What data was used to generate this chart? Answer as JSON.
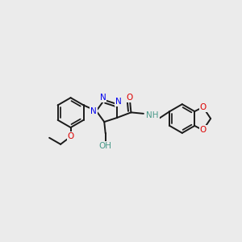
{
  "background_color": "#ebebeb",
  "figsize": [
    3.0,
    3.0
  ],
  "dpi": 100,
  "atom_colors": {
    "C": "#1a1a1a",
    "N": "#0000ee",
    "O": "#dd0000",
    "H": "#4a9a8a"
  },
  "bond_color": "#1a1a1a",
  "bond_width": 1.4,
  "font_size": 7.5
}
